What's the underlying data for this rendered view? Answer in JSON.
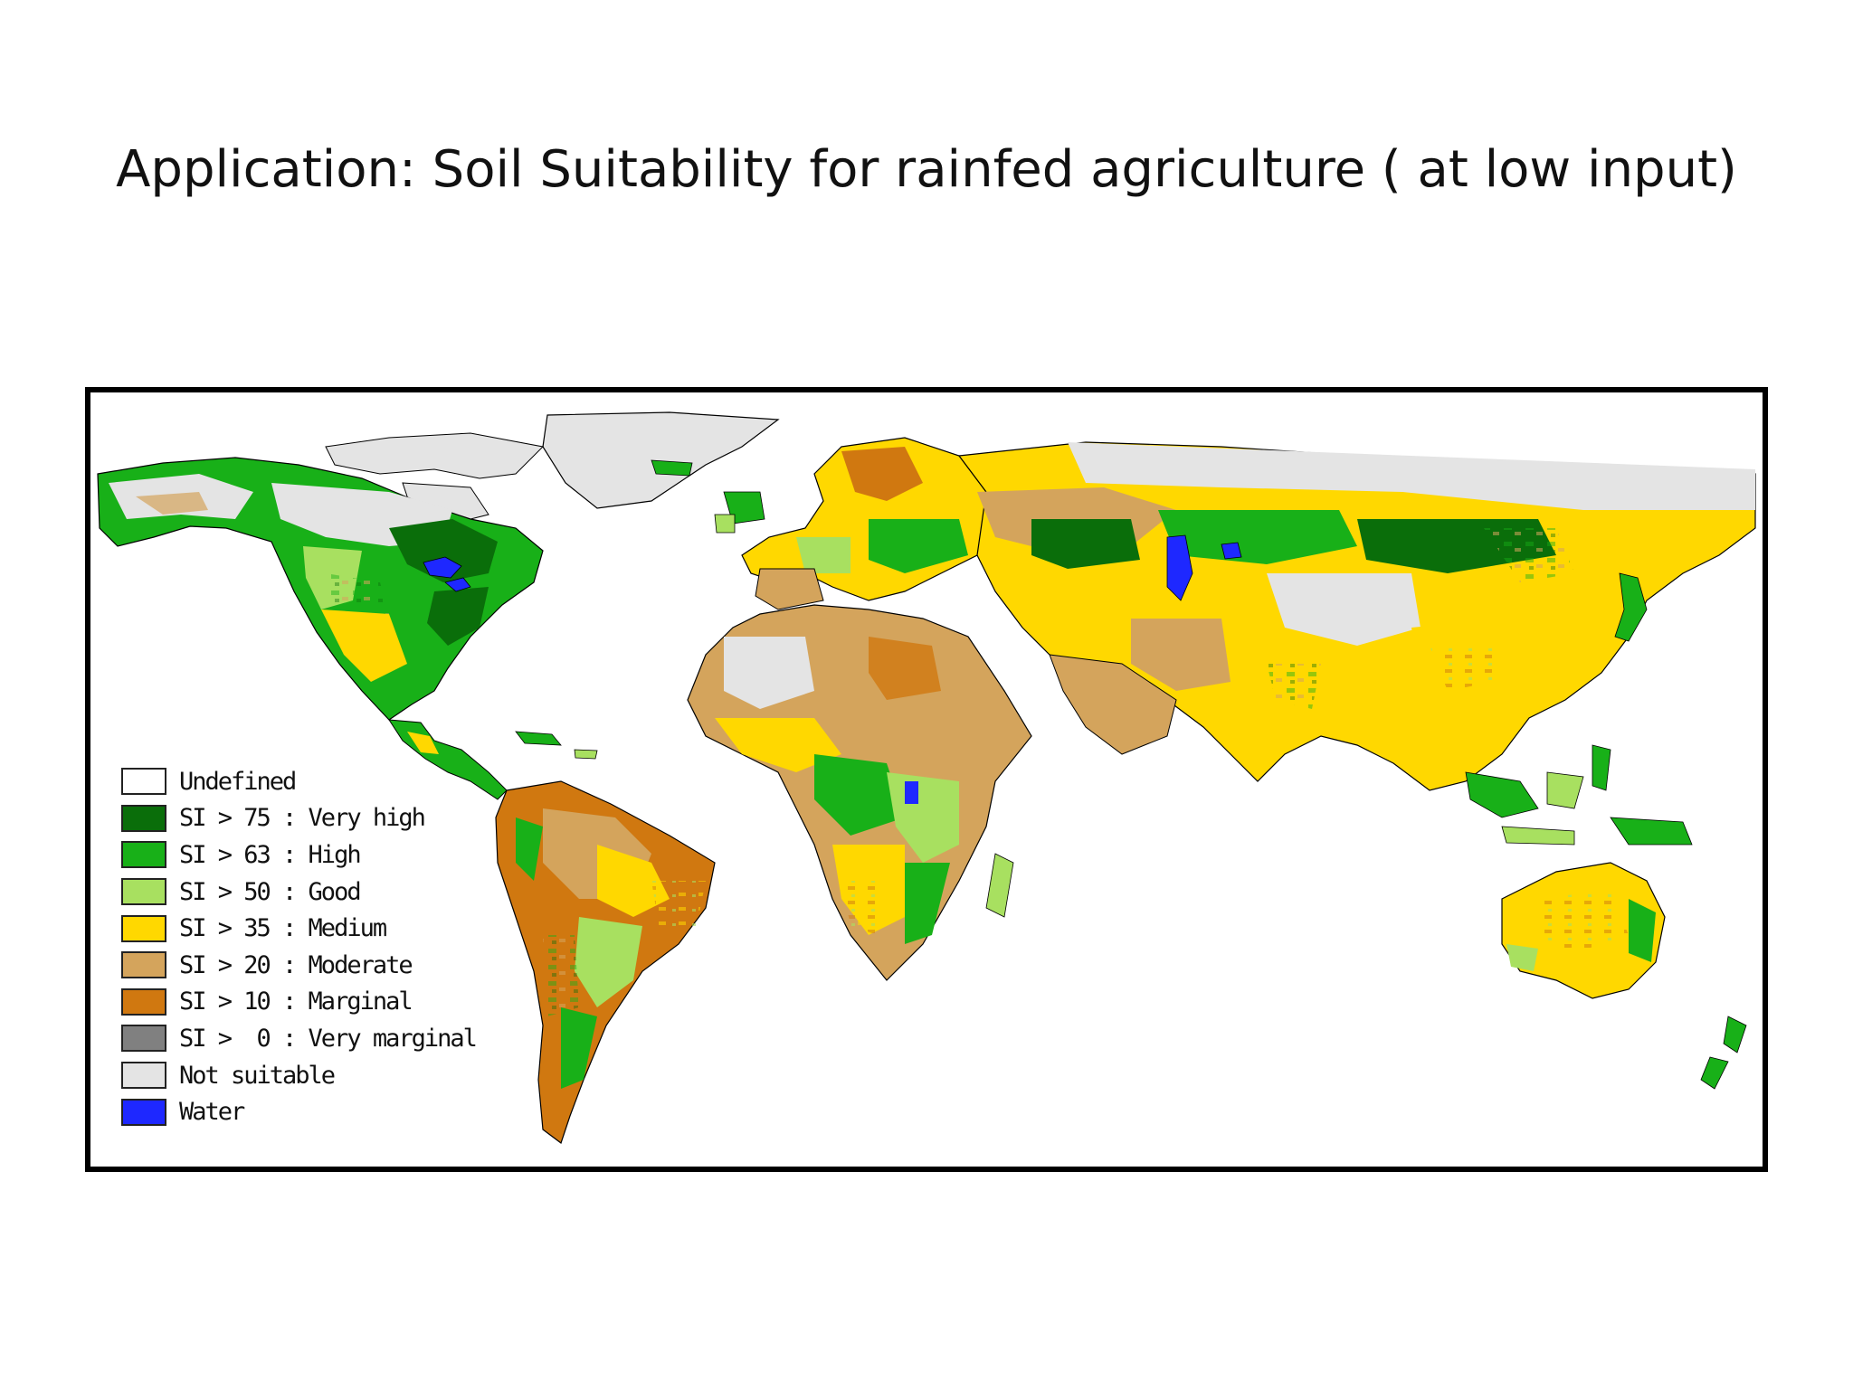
{
  "title": "Application: Soil Suitability for rainfed agriculture ( at low input)",
  "colors": {
    "undefined": "#ffffff",
    "very_high": "#0a6e0a",
    "high": "#18b018",
    "good": "#a8e060",
    "medium": "#ffd800",
    "moderate": "#d4a45c",
    "marginal": "#d07810",
    "very_marginal": "#808080",
    "not_suitable": "#e4e4e4",
    "water": "#1e28ff"
  },
  "legend": [
    {
      "label": "Undefined",
      "color": "#ffffff"
    },
    {
      "label": "SI > 75 : Very high",
      "color": "#0a6e0a"
    },
    {
      "label": "SI > 63 : High",
      "color": "#18b018"
    },
    {
      "label": "SI > 50 : Good",
      "color": "#a8e060"
    },
    {
      "label": "SI > 35 : Medium",
      "color": "#ffd800"
    },
    {
      "label": "SI > 20 : Moderate",
      "color": "#d4a45c"
    },
    {
      "label": "SI > 10 : Marginal",
      "color": "#d07810"
    },
    {
      "label": "SI >  0 : Very marginal",
      "color": "#808080"
    },
    {
      "label": "Not suitable",
      "color": "#e4e4e4"
    },
    {
      "label": "Water",
      "color": "#1e28ff"
    }
  ]
}
